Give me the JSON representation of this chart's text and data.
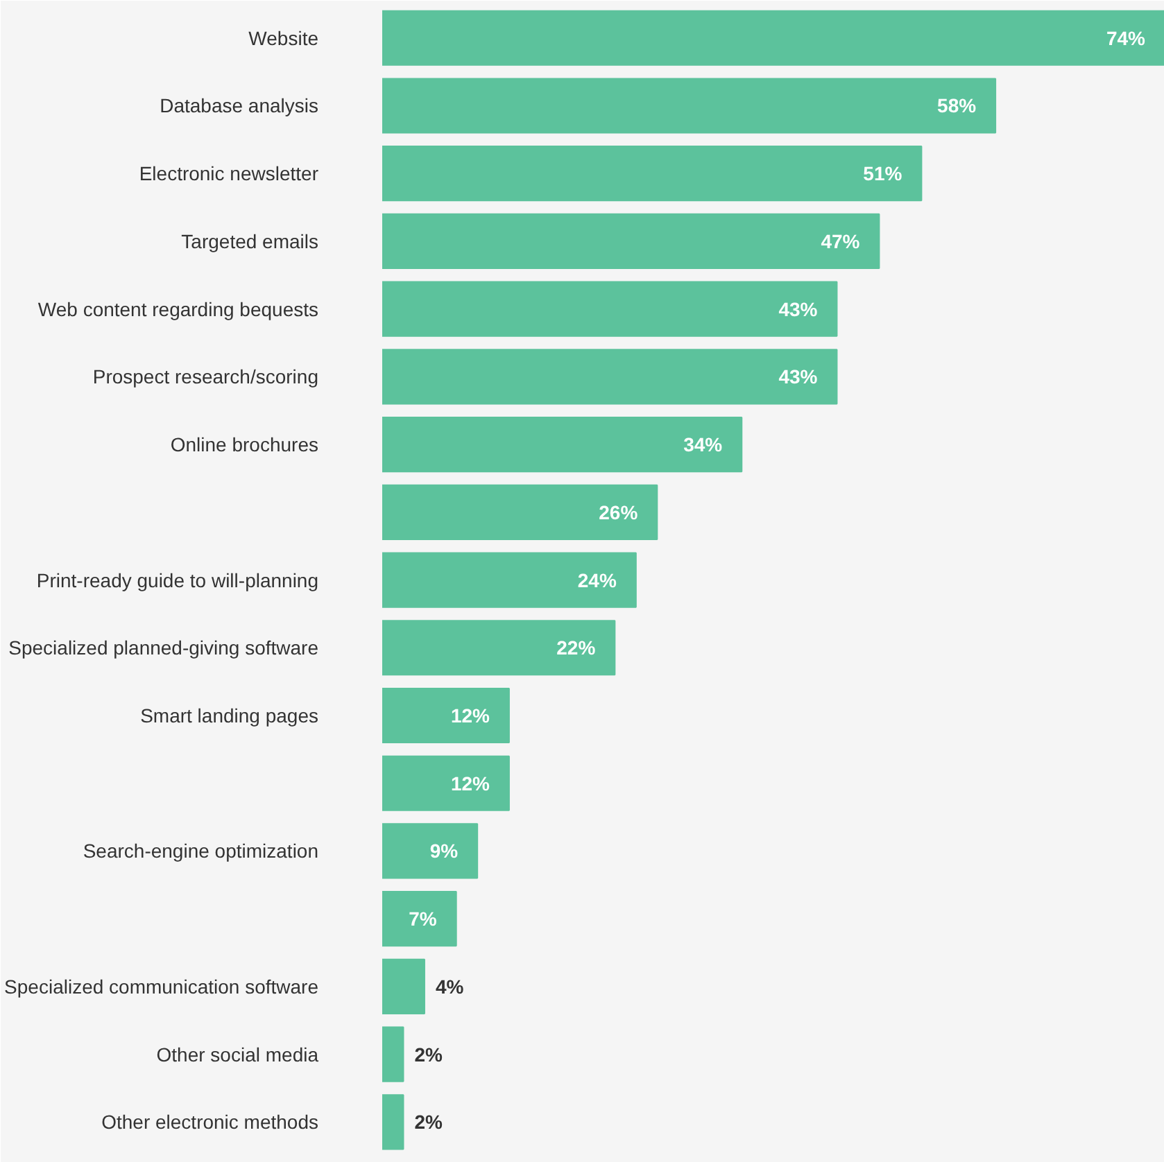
{
  "chart_data": {
    "type": "bar",
    "orientation": "horizontal",
    "categories": [
      "Website",
      "Database analysis",
      "Electronic newsletter",
      "Targeted emails",
      "Web content regarding bequests",
      "Prospect research/scoring",
      "Online brochures",
      null,
      "Print-ready guide to will-planning",
      "Specialized planned-giving software",
      "Smart landing pages",
      null,
      "Search-engine optimization",
      null,
      "Specialized communication software",
      "Other social media",
      "Other electronic methods"
    ],
    "values": [
      74,
      58,
      51,
      47,
      43,
      43,
      34,
      26,
      24,
      22,
      12,
      12,
      9,
      7,
      4,
      2,
      2
    ],
    "value_labels": [
      "74%",
      "58%",
      "51%",
      "47%",
      "43%",
      "43%",
      "34%",
      "26%",
      "24%",
      "22%",
      "12%",
      "12%",
      "9%",
      "7%",
      "4%",
      "2%",
      "2%"
    ],
    "color": "#5cc29c",
    "grid": false
  }
}
